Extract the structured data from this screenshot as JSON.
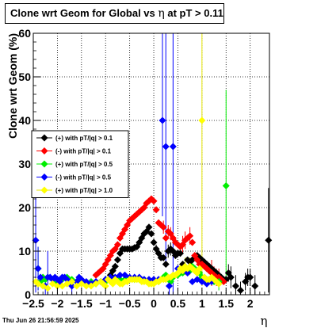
{
  "title": {
    "prefix": "Clone wrt Geom for Global vs",
    "symbol": "η",
    "suffix": "at pT > 0.11"
  },
  "timestamp": "Thu Jun 26 21:56:59 2025",
  "chart_data": {
    "type": "scatter",
    "xlabel": "η",
    "ylabel": "Clone wrt Geom (%)",
    "xlim": [
      -2.5,
      2.4
    ],
    "ylim": [
      0,
      60
    ],
    "x_ticks": [
      -2.5,
      -2,
      -1.5,
      -1,
      -0.5,
      0,
      0.5,
      1,
      1.5,
      2
    ],
    "x_tick_labels": [
      "−2.5",
      "−2",
      "−1.5",
      "−1",
      "−0.5",
      "0",
      "0.5",
      "1",
      "1.5",
      "2"
    ],
    "y_ticks": [
      0,
      10,
      20,
      30,
      40,
      50,
      60
    ],
    "y_tick_labels": [
      "0",
      "10",
      "20",
      "30",
      "40",
      "50",
      "60"
    ],
    "grid": true,
    "legend_position": "left-middle",
    "series": [
      {
        "name": "(+) with pT/|q| > 0.1",
        "color": "#000000",
        "points": [
          [
            -0.9,
            4.5
          ],
          [
            -0.85,
            5.5
          ],
          [
            -0.8,
            6.5
          ],
          [
            -0.75,
            8
          ],
          [
            -0.7,
            9.5
          ],
          [
            -0.65,
            10.5
          ],
          [
            -0.6,
            10.5
          ],
          [
            -0.55,
            10.5
          ],
          [
            -0.5,
            10.5
          ],
          [
            -0.45,
            10.5
          ],
          [
            -0.4,
            10.8
          ],
          [
            -0.35,
            11
          ],
          [
            -0.3,
            12
          ],
          [
            -0.25,
            13
          ],
          [
            -0.2,
            14
          ],
          [
            -0.15,
            14.5
          ],
          [
            -0.1,
            15.5
          ],
          [
            -0.05,
            14
          ],
          [
            0.0,
            12
          ],
          [
            0.05,
            10.5
          ],
          [
            0.1,
            9.5
          ],
          [
            0.15,
            8.5
          ],
          [
            0.2,
            8.5
          ],
          [
            0.25,
            7
          ],
          [
            0.3,
            10
          ],
          [
            0.35,
            10.5
          ],
          [
            0.4,
            10
          ],
          [
            0.45,
            9
          ],
          [
            0.5,
            9.5
          ],
          [
            0.55,
            9.5
          ],
          [
            0.6,
            7
          ],
          [
            0.65,
            6.5
          ],
          [
            0.7,
            8
          ],
          [
            0.75,
            7.5
          ],
          [
            0.8,
            8
          ],
          [
            0.85,
            8.5
          ],
          [
            0.9,
            9
          ],
          [
            0.95,
            8.5
          ],
          [
            1.0,
            8
          ],
          [
            1.05,
            7.5
          ],
          [
            1.1,
            7
          ],
          [
            1.15,
            6.5
          ],
          [
            1.2,
            6
          ],
          [
            1.25,
            5.5
          ],
          [
            1.3,
            5
          ],
          [
            1.35,
            4.5
          ],
          [
            1.4,
            4
          ],
          [
            1.45,
            3.5
          ],
          [
            1.5,
            3.5
          ],
          [
            1.55,
            5
          ],
          [
            1.6,
            4
          ],
          [
            1.7,
            2
          ],
          [
            1.8,
            1
          ],
          [
            1.9,
            3
          ],
          [
            1.95,
            4
          ],
          [
            2.0,
            4
          ],
          [
            2.1,
            2
          ],
          [
            2.38,
            12.5
          ]
        ],
        "errors": [
          [
            0.0,
            0.8
          ],
          [
            0.05,
            1
          ],
          [
            0.3,
            1.5
          ],
          [
            0.35,
            1.5
          ],
          [
            1.55,
            2
          ],
          [
            1.6,
            2.5
          ],
          [
            1.7,
            2.5
          ],
          [
            1.8,
            2
          ],
          [
            1.9,
            2
          ],
          [
            1.95,
            2
          ],
          [
            2.0,
            2
          ],
          [
            2.1,
            2.5
          ],
          [
            2.38,
            12
          ]
        ]
      },
      {
        "name": "(-) with pT/|q| > 0.1",
        "color": "#ff0000",
        "points": [
          [
            -1.2,
            4.5
          ],
          [
            -1.15,
            5
          ],
          [
            -1.1,
            5.5
          ],
          [
            -1.05,
            6
          ],
          [
            -1.0,
            7
          ],
          [
            -0.95,
            8
          ],
          [
            -0.9,
            9
          ],
          [
            -0.85,
            10
          ],
          [
            -0.8,
            10.5
          ],
          [
            -0.75,
            11.5
          ],
          [
            -0.7,
            13
          ],
          [
            -0.65,
            14
          ],
          [
            -0.6,
            15
          ],
          [
            -0.55,
            16
          ],
          [
            -0.5,
            17
          ],
          [
            -0.45,
            17.5
          ],
          [
            -0.4,
            18
          ],
          [
            -0.35,
            18.5
          ],
          [
            -0.3,
            19
          ],
          [
            -0.25,
            19.5
          ],
          [
            -0.2,
            20
          ],
          [
            -0.15,
            21
          ],
          [
            -0.1,
            21.5
          ],
          [
            -0.05,
            22
          ],
          [
            0.0,
            21.5
          ],
          [
            0.05,
            19.5
          ],
          [
            0.1,
            16.5
          ],
          [
            0.15,
            16
          ],
          [
            0.2,
            15.5
          ],
          [
            0.25,
            13
          ],
          [
            0.3,
            14.5
          ],
          [
            0.35,
            14
          ],
          [
            0.4,
            13
          ],
          [
            0.45,
            12
          ],
          [
            0.5,
            11.5
          ],
          [
            0.55,
            11
          ],
          [
            0.6,
            11.5
          ],
          [
            0.65,
            12.5
          ],
          [
            0.7,
            13
          ],
          [
            0.75,
            13.5
          ],
          [
            0.8,
            12
          ],
          [
            0.85,
            9
          ],
          [
            0.9,
            8
          ],
          [
            0.95,
            7
          ],
          [
            1.0,
            7
          ],
          [
            1.05,
            6.5
          ],
          [
            1.1,
            6
          ],
          [
            1.15,
            5.5
          ],
          [
            1.2,
            5
          ],
          [
            1.25,
            4.5
          ],
          [
            1.3,
            4
          ],
          [
            1.35,
            4
          ],
          [
            1.4,
            3.5
          ],
          [
            1.45,
            3
          ]
        ],
        "errors": [
          [
            0.2,
            1.5
          ],
          [
            0.3,
            1.5
          ],
          [
            0.35,
            1.5
          ],
          [
            0.6,
            2
          ],
          [
            0.65,
            2
          ],
          [
            0.75,
            2
          ],
          [
            1.2,
            3
          ],
          [
            1.25,
            2
          ],
          [
            1.3,
            2
          ],
          [
            1.35,
            2
          ]
        ]
      },
      {
        "name": "(+) with pT/|q| > 0.5",
        "color": "#00ee00",
        "points": [
          [
            -2.4,
            6
          ],
          [
            -2.35,
            3
          ],
          [
            -2.3,
            4
          ],
          [
            -2.25,
            3.5
          ],
          [
            -2.2,
            4
          ],
          [
            -2.1,
            3.5
          ],
          [
            -2.0,
            3
          ],
          [
            -1.9,
            3.5
          ],
          [
            -1.8,
            4
          ],
          [
            -1.7,
            3.5
          ],
          [
            -1.6,
            3
          ],
          [
            -1.5,
            3
          ],
          [
            -1.4,
            2.5
          ],
          [
            -1.3,
            3
          ],
          [
            -1.2,
            2.5
          ],
          [
            -1.1,
            3
          ],
          [
            -1.0,
            3
          ],
          [
            -0.9,
            3.5
          ],
          [
            -0.8,
            3.5
          ],
          [
            -0.7,
            3.5
          ],
          [
            -0.6,
            3.5
          ],
          [
            -0.5,
            3.5
          ],
          [
            -0.4,
            3.5
          ],
          [
            -0.3,
            3.5
          ],
          [
            -0.2,
            3.5
          ],
          [
            -0.1,
            3
          ],
          [
            0.0,
            3
          ],
          [
            0.1,
            3
          ],
          [
            0.2,
            4
          ],
          [
            0.25,
            4.5
          ],
          [
            0.3,
            4
          ],
          [
            0.35,
            3
          ],
          [
            0.4,
            4
          ],
          [
            0.45,
            4.5
          ],
          [
            0.5,
            4.5
          ],
          [
            0.55,
            5
          ],
          [
            0.6,
            5
          ],
          [
            0.65,
            6
          ],
          [
            0.7,
            6
          ],
          [
            0.75,
            5.5
          ],
          [
            0.8,
            6.5
          ],
          [
            0.85,
            6
          ],
          [
            0.9,
            5
          ],
          [
            0.95,
            5
          ],
          [
            1.0,
            4
          ],
          [
            1.05,
            4
          ],
          [
            1.1,
            3.5
          ],
          [
            1.15,
            3.5
          ],
          [
            1.2,
            3
          ],
          [
            1.25,
            3
          ],
          [
            1.3,
            3
          ],
          [
            1.35,
            3
          ],
          [
            1.5,
            25
          ]
        ],
        "errors": [
          [
            -2.4,
            5
          ],
          [
            1.35,
            2
          ],
          [
            1.5,
            22
          ]
        ]
      },
      {
        "name": "(-) with pT/|q| > 0.5",
        "color": "#0000ff",
        "points": [
          [
            -2.45,
            12.5
          ],
          [
            -2.4,
            6
          ],
          [
            -2.35,
            4
          ],
          [
            -2.25,
            2
          ],
          [
            -2.2,
            4
          ],
          [
            -2.15,
            4
          ],
          [
            -2.1,
            3.5
          ],
          [
            -2.05,
            4
          ],
          [
            -2.0,
            3.5
          ],
          [
            -1.95,
            3
          ],
          [
            -1.9,
            4
          ],
          [
            -1.85,
            4
          ],
          [
            -1.8,
            3.5
          ],
          [
            -1.7,
            2
          ],
          [
            -1.6,
            3
          ],
          [
            -1.55,
            4
          ],
          [
            -1.5,
            3.5
          ],
          [
            -1.4,
            3
          ],
          [
            -1.3,
            2.5
          ],
          [
            -1.2,
            3
          ],
          [
            -1.1,
            3
          ],
          [
            -1.0,
            3.5
          ],
          [
            -0.9,
            4
          ],
          [
            -0.8,
            4
          ],
          [
            -0.7,
            4.5
          ],
          [
            -0.6,
            4.5
          ],
          [
            -0.5,
            4
          ],
          [
            -0.4,
            4
          ],
          [
            -0.3,
            4
          ],
          [
            -0.2,
            3.5
          ],
          [
            -0.1,
            3.5
          ],
          [
            0.0,
            3.5
          ],
          [
            0.1,
            3.5
          ],
          [
            0.18,
            40
          ],
          [
            0.25,
            34
          ],
          [
            0.32,
            2
          ],
          [
            0.4,
            34
          ],
          [
            0.5,
            6
          ],
          [
            0.6,
            5.5
          ],
          [
            0.7,
            5
          ],
          [
            0.8,
            3
          ],
          [
            0.9,
            3.5
          ],
          [
            1.0,
            3
          ],
          [
            1.1,
            2.5
          ],
          [
            1.2,
            3
          ]
        ],
        "errors": [
          [
            -2.45,
            12
          ],
          [
            -2.4,
            5
          ],
          [
            -2.25,
            2
          ],
          [
            -2.2,
            6
          ],
          [
            -1.7,
            2
          ],
          [
            0.18,
            22
          ],
          [
            0.25,
            27
          ],
          [
            0.32,
            2
          ],
          [
            0.4,
            34
          ]
        ]
      },
      {
        "name": "(+) with pT/|q| > 1.0",
        "color": "#ffff00",
        "points": [
          [
            -2.45,
            3
          ],
          [
            -2.4,
            2.5
          ],
          [
            -2.3,
            2
          ],
          [
            -2.2,
            1.5
          ],
          [
            -2.1,
            2.5
          ],
          [
            -2.0,
            2
          ],
          [
            -1.9,
            2
          ],
          [
            -1.8,
            2.5
          ],
          [
            -1.7,
            3
          ],
          [
            -1.6,
            2
          ],
          [
            -1.5,
            2.5
          ],
          [
            -1.4,
            2
          ],
          [
            -1.3,
            2
          ],
          [
            -1.2,
            2.5
          ],
          [
            -1.1,
            3
          ],
          [
            -1.05,
            2.5
          ],
          [
            -1.0,
            2
          ],
          [
            -0.95,
            3.5
          ],
          [
            -0.9,
            3
          ],
          [
            -0.85,
            2.5
          ],
          [
            -0.8,
            3.5
          ],
          [
            -0.75,
            3
          ],
          [
            -0.7,
            2.5
          ],
          [
            -0.65,
            2.5
          ],
          [
            -0.6,
            3
          ],
          [
            -0.55,
            3
          ],
          [
            -0.5,
            3.5
          ],
          [
            -0.45,
            3.5
          ],
          [
            -0.4,
            3.5
          ],
          [
            -0.35,
            3.5
          ],
          [
            -0.3,
            3.5
          ],
          [
            -0.25,
            3
          ],
          [
            -0.2,
            3
          ],
          [
            -0.15,
            3
          ],
          [
            -0.1,
            2.5
          ],
          [
            -0.05,
            2.5
          ],
          [
            0.0,
            2.5
          ],
          [
            0.05,
            3
          ],
          [
            0.1,
            3
          ],
          [
            0.15,
            3.5
          ],
          [
            0.2,
            3.5
          ],
          [
            0.25,
            3.5
          ],
          [
            0.3,
            4
          ],
          [
            0.35,
            4
          ],
          [
            0.4,
            4.5
          ],
          [
            0.45,
            4.5
          ],
          [
            0.5,
            5
          ],
          [
            0.55,
            6
          ],
          [
            0.6,
            5.5
          ],
          [
            0.65,
            6.5
          ],
          [
            0.7,
            6
          ],
          [
            0.75,
            6.5
          ],
          [
            0.8,
            6
          ],
          [
            0.85,
            5.5
          ],
          [
            0.9,
            5
          ],
          [
            0.95,
            6
          ],
          [
            1.0,
            40
          ],
          [
            1.05,
            4
          ],
          [
            1.1,
            3.5
          ],
          [
            1.15,
            3.5
          ],
          [
            1.2,
            4
          ],
          [
            1.25,
            3.5
          ],
          [
            1.3,
            3
          ],
          [
            1.35,
            2.5
          ]
        ],
        "errors": [
          [
            1.0,
            38
          ],
          [
            0.65,
            2
          ],
          [
            0.75,
            2
          ],
          [
            0.95,
            2
          ]
        ]
      }
    ]
  }
}
